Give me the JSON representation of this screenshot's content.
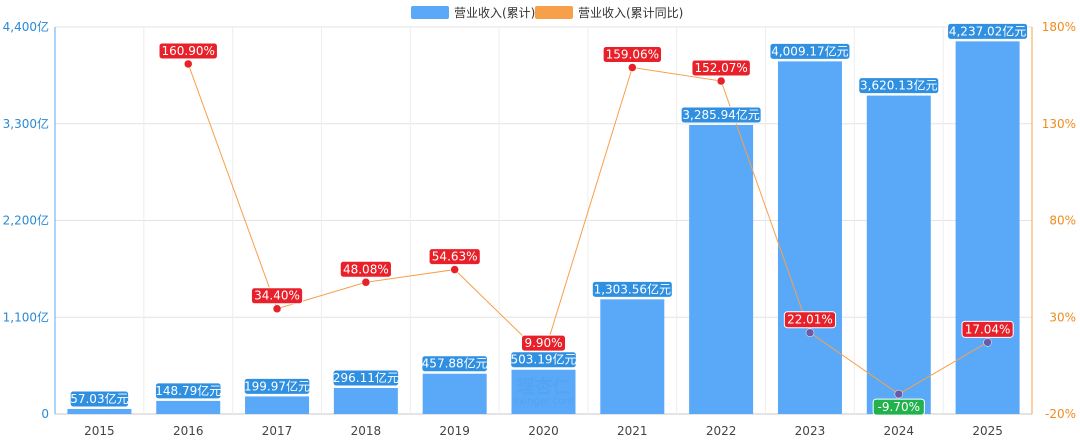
{
  "chart_data": {
    "type": "bar",
    "categories": [
      "2015",
      "2016",
      "2017",
      "2018",
      "2019",
      "2020",
      "2021",
      "2022",
      "2023",
      "2024",
      "2025"
    ],
    "series": [
      {
        "name": "营业收入(累计)",
        "kind": "bar",
        "axis": "left",
        "color": "#5aa9f9",
        "values": [
          57.03,
          148.79,
          199.97,
          296.11,
          457.88,
          503.19,
          1303.56,
          3285.94,
          4009.17,
          3620.13,
          4237.02
        ],
        "labels": [
          "57.03亿元",
          "148.79亿元",
          "199.97亿元",
          "296.11亿元",
          "457.88亿元",
          "503.19亿元",
          "1,303.56亿元",
          "3,285.94亿元",
          "4,009.17亿元",
          "3,620.13亿元",
          "4,237.02亿元"
        ]
      },
      {
        "name": "营业收入(累计同比)",
        "kind": "line",
        "axis": "right",
        "color": "#f7a04a",
        "values": [
          null,
          160.9,
          34.4,
          48.08,
          54.63,
          9.9,
          159.06,
          152.07,
          22.01,
          -9.7,
          17.04
        ],
        "labels": [
          "",
          "160.90%",
          "34.40%",
          "48.08%",
          "54.63%",
          "9.90%",
          "159.06%",
          "152.07%",
          "22.01%",
          "-9.70%",
          "17.04%"
        ]
      }
    ],
    "y_left": {
      "min": 0,
      "max": 4400,
      "ticks": [
        0,
        1100,
        2200,
        3300,
        4400
      ],
      "tick_labels": [
        "0",
        "1,100亿",
        "2,200亿",
        "3,300亿",
        "4,400亿"
      ]
    },
    "y_right": {
      "min": -20,
      "max": 180,
      "ticks": [
        -20,
        30,
        80,
        130,
        180
      ],
      "tick_labels": [
        "-20%",
        "30%",
        "80%",
        "130%",
        "180%"
      ]
    },
    "legend_position": "top-center",
    "grid": true,
    "label_colors": {
      "positive": "#e8202a",
      "negative": "#22b24c",
      "bar": "#2f8fe0"
    },
    "watermark": {
      "main": "理杏仁",
      "sub": "lixinger.com"
    }
  }
}
